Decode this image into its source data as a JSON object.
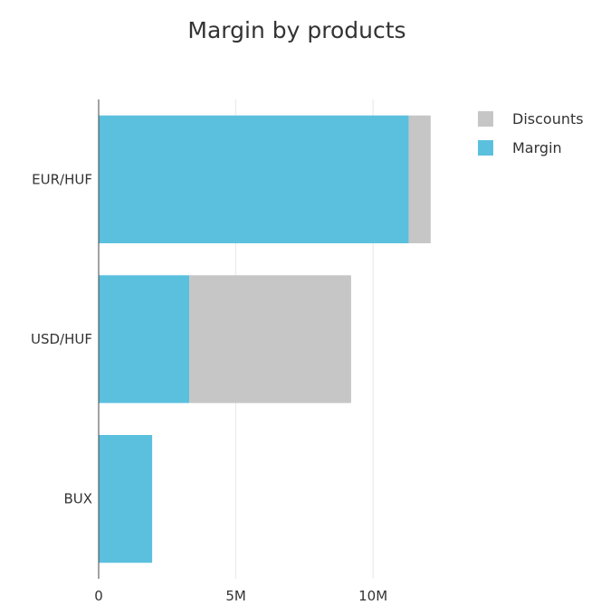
{
  "chart_data": {
    "type": "bar",
    "orientation": "horizontal",
    "stacked": true,
    "title": "Margin by products",
    "xlabel": "",
    "ylabel": "",
    "categories": [
      "EUR/HUF",
      "USD/HUF",
      "BUX"
    ],
    "series": [
      {
        "name": "Margin",
        "values": [
          11300000,
          3300000,
          1950000
        ],
        "color": "#5bc0de"
      },
      {
        "name": "Discounts",
        "values": [
          800000,
          5900000,
          0
        ],
        "color": "#c6c6c6"
      }
    ],
    "xlim": [
      0,
      12700000
    ],
    "x_ticks": [
      {
        "value": 0,
        "label": "0"
      },
      {
        "value": 5000000,
        "label": "5M"
      },
      {
        "value": 10000000,
        "label": "10M"
      }
    ],
    "grid": true,
    "legend": {
      "position": "top-right",
      "entries": [
        {
          "name": "Discounts",
          "color": "#c6c6c6"
        },
        {
          "name": "Margin",
          "color": "#5bc0de"
        }
      ]
    }
  }
}
